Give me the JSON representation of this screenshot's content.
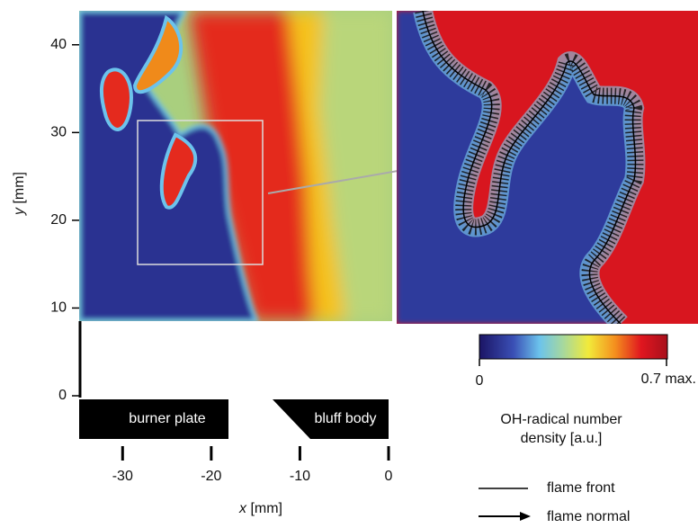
{
  "figure": {
    "y_axis": {
      "label_var": "y",
      "label_unit": "[mm]",
      "lim": [
        0,
        45
      ],
      "ticks": [
        0,
        10,
        20,
        30,
        40
      ]
    },
    "x_axis": {
      "label_var": "x",
      "label_unit": "[mm]",
      "lim": [
        -35,
        0
      ],
      "ticks": [
        -30,
        -20,
        -10,
        0
      ]
    },
    "shapes": {
      "burner_plate": "burner plate",
      "bluff_body": "bluff body"
    },
    "colorbar": {
      "min_label": "0",
      "max_label": "0.7 max.",
      "title_line1": "OH-radical number",
      "title_line2": "density [a.u.]"
    },
    "legend": {
      "flame_front": "flame front",
      "flame_normal": "flame normal"
    }
  }
}
